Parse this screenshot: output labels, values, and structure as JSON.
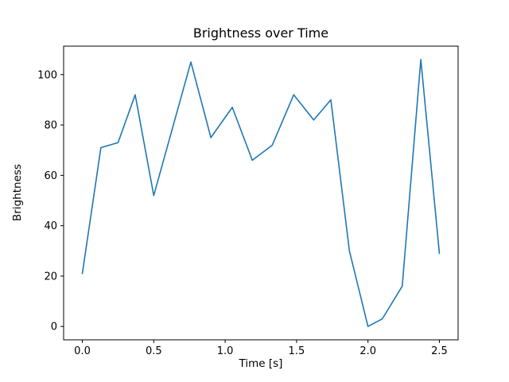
{
  "figure": {
    "background": "#ffffff"
  },
  "chart_data": {
    "type": "line",
    "title": "Brightness over Time",
    "xlabel": "Time [s]",
    "ylabel": "Brightness",
    "line_color": "#1f77b4",
    "axis_color": "#000000",
    "xlim": [
      -0.131,
      2.631
    ],
    "ylim": [
      -5.3,
      111.3
    ],
    "xticks": [
      0.0,
      0.5,
      1.0,
      1.5,
      2.0,
      2.5
    ],
    "xtick_labels": [
      "0.0",
      "0.5",
      "1.0",
      "1.5",
      "2.0",
      "2.5"
    ],
    "yticks": [
      0,
      20,
      40,
      60,
      80,
      100
    ],
    "ytick_labels": [
      "0",
      "20",
      "40",
      "60",
      "80",
      "100"
    ],
    "grid": false,
    "legend": "none",
    "series": [
      {
        "name": "brightness",
        "x": [
          0.0,
          0.13,
          0.25,
          0.37,
          0.5,
          0.76,
          0.9,
          1.05,
          1.19,
          1.33,
          1.48,
          1.62,
          1.74,
          1.87,
          2.0,
          2.1,
          2.24,
          2.37,
          2.5
        ],
        "y": [
          21,
          71,
          73,
          92,
          52,
          105,
          75,
          87,
          66,
          72,
          92,
          82,
          90,
          30,
          0,
          3,
          16,
          106,
          29
        ]
      }
    ]
  }
}
